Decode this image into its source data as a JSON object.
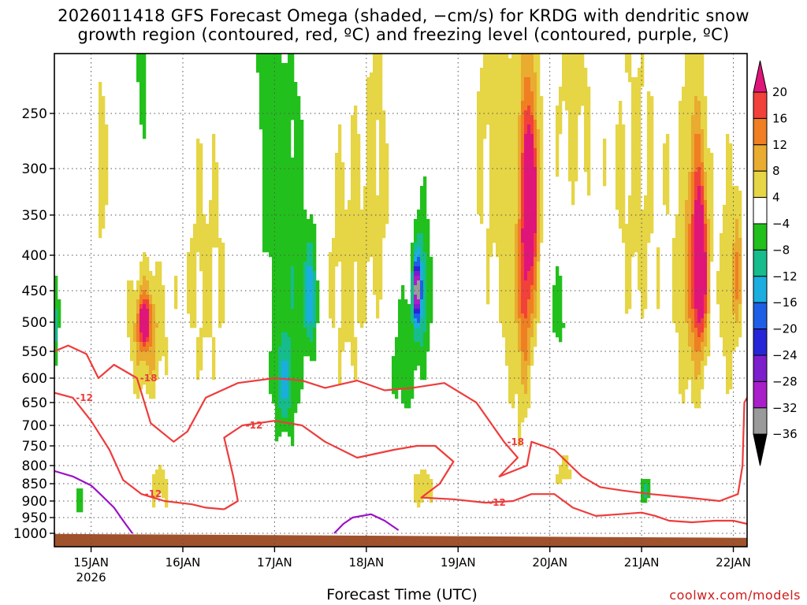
{
  "chart_data": {
    "type": "heatmap",
    "title_line1": "2026011418 GFS Forecast Omega (shaded, −cm/s) for KRDG with dendritic snow",
    "title_line2": "growth region (contoured, red, ºC) and freezing level (contoured, purple, ºC)",
    "xlabel": "Forecast Time (UTC)",
    "credit": "coolwx.com/models",
    "year_label": "2026",
    "x_ticks": [
      {
        "label": "15JAN",
        "day": 15
      },
      {
        "label": "16JAN",
        "day": 16
      },
      {
        "label": "17JAN",
        "day": 17
      },
      {
        "label": "18JAN",
        "day": 18
      },
      {
        "label": "19JAN",
        "day": 19
      },
      {
        "label": "20JAN",
        "day": 20
      },
      {
        "label": "21JAN",
        "day": 21
      },
      {
        "label": "22JAN",
        "day": 22
      }
    ],
    "x_range": [
      14.6,
      22.15
    ],
    "y_ticks": [
      250,
      300,
      350,
      400,
      450,
      500,
      550,
      600,
      650,
      700,
      750,
      800,
      850,
      900,
      950,
      1000
    ],
    "y_range_hpa": [
      200,
      1020
    ],
    "colorbar_labels": [
      "20",
      "16",
      "12",
      "8",
      "4",
      "−4",
      "−8",
      "−12",
      "−16",
      "−20",
      "−24",
      "−28",
      "−32",
      "−36"
    ],
    "colorbar_colors": [
      "#e0157a",
      "#f2413a",
      "#ef7f22",
      "#e9ab30",
      "#e6d545",
      "#ffffff",
      "#22c01c",
      "#16bc8c",
      "#1aaee0",
      "#1f5fe6",
      "#2626d8",
      "#7d1ecc",
      "#a81ec8",
      "#9a9a9a"
    ],
    "omega_blobs": [
      {
        "day": 15.1,
        "p": 300,
        "dd": 0.1,
        "dp": 160,
        "v": 5
      },
      {
        "day": 15.55,
        "p": 180,
        "dd": 0.08,
        "dp": 120,
        "v": -6
      },
      {
        "day": 15.6,
        "p": 520,
        "dd": 0.2,
        "dp": 120,
        "v": 10
      },
      {
        "day": 15.58,
        "p": 500,
        "dd": 0.07,
        "dp": 40,
        "v": 18
      },
      {
        "day": 15.75,
        "p": 860,
        "dd": 0.12,
        "dp": 80,
        "v": 6
      },
      {
        "day": 14.6,
        "p": 510,
        "dd": 0.05,
        "dp": 80,
        "v": -10
      },
      {
        "day": 14.85,
        "p": 900,
        "dd": 0.08,
        "dp": 60,
        "v": -6
      },
      {
        "day": 16.25,
        "p": 430,
        "dd": 0.35,
        "dp": 220,
        "v": 5
      },
      {
        "day": 16.9,
        "p": 200,
        "dd": 0.12,
        "dp": 200,
        "v": -6
      },
      {
        "day": 17.15,
        "p": 420,
        "dd": 0.22,
        "dp": 300,
        "v": -7
      },
      {
        "day": 17.4,
        "p": 460,
        "dd": 0.08,
        "dp": 90,
        "v": -13
      },
      {
        "day": 17.1,
        "p": 620,
        "dd": 0.1,
        "dp": 90,
        "v": -8
      },
      {
        "day": 17.75,
        "p": 430,
        "dd": 0.25,
        "dp": 230,
        "v": 5
      },
      {
        "day": 18.15,
        "p": 300,
        "dd": 0.25,
        "dp": 250,
        "v": 5
      },
      {
        "day": 18.4,
        "p": 560,
        "dd": 0.15,
        "dp": 150,
        "v": -7
      },
      {
        "day": 18.6,
        "p": 450,
        "dd": 0.1,
        "dp": 120,
        "v": -12
      },
      {
        "day": 18.55,
        "p": 450,
        "dd": 0.04,
        "dp": 40,
        "v": -26
      },
      {
        "day": 18.3,
        "p": 160,
        "dd": 0.1,
        "dp": 150,
        "v": -6
      },
      {
        "day": 18.6,
        "p": 860,
        "dd": 0.15,
        "dp": 60,
        "v": 7
      },
      {
        "day": 19.35,
        "p": 250,
        "dd": 0.25,
        "dp": 260,
        "v": 5
      },
      {
        "day": 19.65,
        "p": 460,
        "dd": 0.18,
        "dp": 300,
        "v": 6
      },
      {
        "day": 19.72,
        "p": 400,
        "dd": 0.06,
        "dp": 200,
        "v": 11
      },
      {
        "day": 19.8,
        "p": 350,
        "dd": 0.09,
        "dp": 160,
        "v": 14
      },
      {
        "day": 19.8,
        "p": 330,
        "dd": 0.05,
        "dp": 60,
        "v": 21
      },
      {
        "day": 20.1,
        "p": 480,
        "dd": 0.12,
        "dp": 90,
        "v": -6
      },
      {
        "day": 20.25,
        "p": 220,
        "dd": 0.28,
        "dp": 160,
        "v": 5
      },
      {
        "day": 20.15,
        "p": 820,
        "dd": 0.15,
        "dp": 60,
        "v": 5
      },
      {
        "day": 21.05,
        "p": 870,
        "dd": 0.06,
        "dp": 40,
        "v": -9
      },
      {
        "day": 20.95,
        "p": 330,
        "dd": 0.35,
        "dp": 250,
        "v": 5
      },
      {
        "day": 21.55,
        "p": 440,
        "dd": 0.22,
        "dp": 300,
        "v": 6
      },
      {
        "day": 21.6,
        "p": 400,
        "dd": 0.1,
        "dp": 150,
        "v": 12
      },
      {
        "day": 21.65,
        "p": 420,
        "dd": 0.07,
        "dp": 100,
        "v": 17
      },
      {
        "day": 21.95,
        "p": 450,
        "dd": 0.12,
        "dp": 200,
        "v": 6
      },
      {
        "day": 22.05,
        "p": 420,
        "dd": 0.05,
        "dp": 100,
        "v": 9
      }
    ],
    "contours_dgz": [
      {
        "level": "-18",
        "points": [
          [
            14.6,
            550
          ],
          [
            14.75,
            540
          ],
          [
            14.95,
            555
          ],
          [
            15.08,
            600
          ],
          [
            15.25,
            575
          ],
          [
            15.5,
            600
          ],
          [
            15.65,
            695
          ],
          [
            15.9,
            740
          ],
          [
            16.05,
            715
          ],
          [
            16.25,
            640
          ],
          [
            16.6,
            610
          ],
          [
            17.0,
            600
          ],
          [
            17.3,
            605
          ],
          [
            17.55,
            620
          ],
          [
            17.9,
            605
          ],
          [
            18.2,
            625
          ],
          [
            18.5,
            620
          ],
          [
            18.85,
            610
          ],
          [
            19.2,
            650
          ],
          [
            19.5,
            740
          ],
          [
            19.65,
            780
          ],
          [
            19.45,
            830
          ],
          [
            19.75,
            800
          ],
          [
            19.8,
            740
          ],
          [
            20.05,
            760
          ],
          [
            20.35,
            830
          ],
          [
            20.55,
            860
          ],
          [
            20.8,
            870
          ],
          [
            21.1,
            880
          ],
          [
            21.5,
            890
          ],
          [
            21.85,
            900
          ],
          [
            22.05,
            880
          ],
          [
            22.1,
            800
          ],
          [
            22.12,
            650
          ],
          [
            22.15,
            640
          ]
        ]
      },
      {
        "level": "-12",
        "points": [
          [
            14.6,
            630
          ],
          [
            14.8,
            640
          ],
          [
            15.0,
            690
          ],
          [
            15.2,
            760
          ],
          [
            15.35,
            840
          ],
          [
            15.55,
            880
          ],
          [
            15.8,
            900
          ],
          [
            16.1,
            910
          ],
          [
            16.25,
            920
          ],
          [
            16.45,
            925
          ]
        ]
      },
      {
        "level": "-12",
        "points": [
          [
            16.45,
            925
          ],
          [
            16.6,
            900
          ],
          [
            16.55,
            830
          ],
          [
            16.45,
            730
          ],
          [
            16.65,
            700
          ],
          [
            17.0,
            690
          ],
          [
            17.3,
            700
          ],
          [
            17.55,
            740
          ],
          [
            17.9,
            780
          ],
          [
            18.1,
            770
          ],
          [
            18.3,
            760
          ],
          [
            18.55,
            750
          ],
          [
            18.75,
            750
          ],
          [
            18.95,
            790
          ],
          [
            18.8,
            850
          ],
          [
            18.6,
            890
          ],
          [
            18.95,
            895
          ],
          [
            19.3,
            905
          ],
          [
            19.6,
            900
          ],
          [
            19.8,
            880
          ],
          [
            20.05,
            880
          ],
          [
            20.25,
            920
          ],
          [
            20.5,
            945
          ],
          [
            20.75,
            940
          ],
          [
            21.0,
            935
          ],
          [
            21.15,
            945
          ],
          [
            21.3,
            960
          ],
          [
            21.55,
            965
          ],
          [
            21.8,
            960
          ],
          [
            22.0,
            960
          ],
          [
            22.15,
            970
          ]
        ]
      }
    ],
    "contours_freezing": [
      {
        "level": "0",
        "points": [
          [
            14.6,
            815
          ],
          [
            14.8,
            830
          ],
          [
            15.0,
            855
          ],
          [
            15.1,
            880
          ],
          [
            15.25,
            920
          ],
          [
            15.35,
            960
          ],
          [
            15.45,
            1000
          ]
        ]
      },
      {
        "level": "0",
        "points": [
          [
            17.65,
            1000
          ],
          [
            17.75,
            970
          ],
          [
            17.85,
            950
          ],
          [
            18.05,
            940
          ],
          [
            18.2,
            960
          ],
          [
            18.35,
            990
          ]
        ]
      }
    ]
  }
}
